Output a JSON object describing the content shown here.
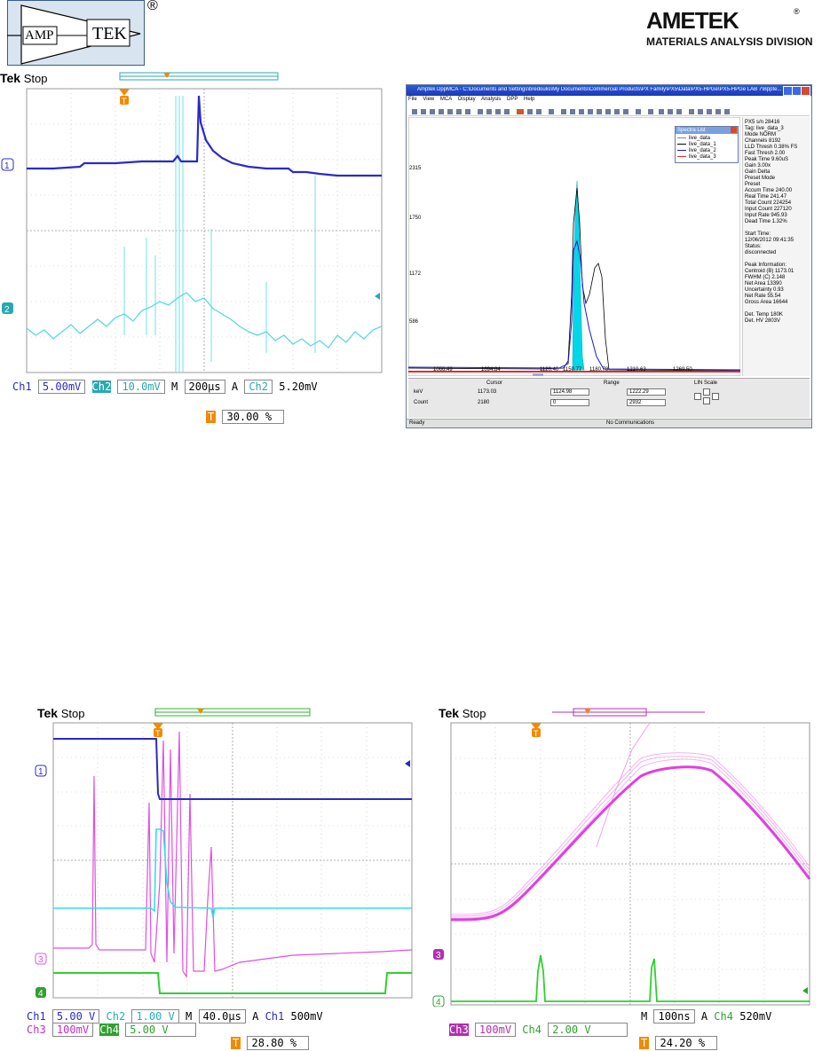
{
  "logos": {
    "amptek": {
      "left": "AMP",
      "right": "TEK",
      "mark": "®"
    },
    "ametek": {
      "name": "AMETEK",
      "mark": "®",
      "division": "MATERIALS ANALYSIS DIVISION"
    }
  },
  "scope1": {
    "brand": "Tek",
    "state": "Stop",
    "channel_markers": [
      "1",
      "2"
    ],
    "trigger_marker": "T",
    "status": {
      "ch1_label": "Ch1",
      "ch1_scale": "5.00mV",
      "ch2_label": "Ch2",
      "ch2_scale": "10.0mV",
      "m_label": "M",
      "timebase": "200µs",
      "trig_mode": "A",
      "trig_src": "Ch2",
      "trig_level": "5.20mV",
      "trigger_pos": "30.00 %"
    },
    "colors": {
      "ch1": "#2a2ac8",
      "ch2": "#5ad8e0"
    }
  },
  "mca": {
    "title": "Amptek DppMCA - C:\\Documents and Settings\\bredoulis\\My Documents\\Commercial Products\\PX Family\\PX5\\Data\\PX5-HPGe\\PX5-HPGe LAB 7\\Bppte...",
    "menu": [
      "File",
      "View",
      "MCA",
      "Display",
      "Analysis",
      "DPP",
      "Help"
    ],
    "y_labels": [
      "2315",
      "1750",
      "1172",
      "586"
    ],
    "x_labels": [
      "1066.49",
      "1094.84",
      "1120.40",
      "1150.77",
      "1180.78",
      "1210.63",
      "1269.50"
    ],
    "legend_title": "Spectra List",
    "legend_items": [
      "live_data",
      "live_data_1",
      "live_data_2",
      "live_data_3"
    ],
    "info_lines": [
      "PX5 s/n   28416",
      "Tag:        live_data_3",
      "Mode       NORM",
      "Channels    8192",
      "LLD Thresh  0.38% FS",
      "Fast Thresh 2.00",
      "Peak Time   9.60uS",
      "Gain        3.00x",
      "Gain Delta",
      "Preset Mode",
      "Preset",
      "Accum Time  240.00",
      "Real Time   241.47",
      "Total Count 224254",
      "Input Count 227120",
      "Input Rate  945.93",
      "Dead Time   1.32%",
      "",
      "Start Time:",
      "12/06/2012 09:41:35",
      "Status:",
      "disconnected",
      "",
      "Peak Information:",
      "Centroid (B)  1173.01",
      "FWHM (C)     2.148",
      "Net Area     13390",
      "Uncertainty  0.93",
      "Net Rate     55.54",
      "Gross Area   16644",
      "",
      "Det. Temp    180K",
      "Det. HV      2803V"
    ],
    "bottom": {
      "cursor_label": "Cursor",
      "range_label": "Range",
      "scale_label": "LIN Scale",
      "kev_label": "keV",
      "count_label": "Count",
      "cursor_kev": "1173.03",
      "cursor_count": "2180",
      "range_lo_kev": "1124.98",
      "range_lo_count": "0",
      "range_hi_kev": "1222.29",
      "range_hi_count": "2932"
    },
    "statusbar": {
      "left": "Ready",
      "center": "No Communications"
    }
  },
  "scope3": {
    "brand": "Tek",
    "state": "Stop",
    "channel_markers": [
      "1",
      "3",
      "4"
    ],
    "trigger_marker": "T",
    "status": {
      "row1": {
        "ch1_label": "Ch1",
        "ch1_scale": "5.00 V",
        "ch2_label": "Ch2",
        "ch2_scale": "1.00 V",
        "m_label": "M",
        "timebase": "40.0µs",
        "trig_mode": "A",
        "trig_src": "Ch1",
        "trig_level": "500mV"
      },
      "row2": {
        "ch3_label": "Ch3",
        "ch3_scale": "100mV",
        "ch4_label": "Ch4",
        "ch4_scale": "5.00 V"
      },
      "trigger_pos": "28.80 %"
    },
    "colors": {
      "ch1": "#2a2ac8",
      "ch2": "#30e0e8",
      "ch3": "#e050e0",
      "ch4": "#30d030"
    }
  },
  "scope4": {
    "brand": "Tek",
    "state": "Stop",
    "channel_markers": [
      "3",
      "4"
    ],
    "trigger_marker": "T",
    "status": {
      "ch3_label": "Ch3",
      "ch3_scale": "100mV",
      "ch4_label": "Ch4",
      "ch4_scale": "2.00 V",
      "m_label": "M",
      "timebase": "100ns",
      "trig_mode": "A",
      "trig_src": "Ch4",
      "trig_level": "520mV",
      "trigger_pos": "24.20 %"
    },
    "colors": {
      "ch3": "#e050e0",
      "ch4": "#30d030"
    }
  }
}
